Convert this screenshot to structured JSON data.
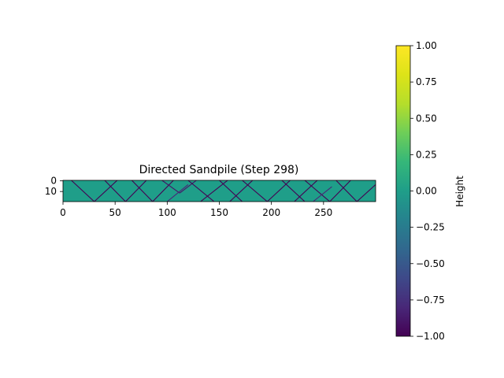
{
  "chart_data": {
    "type": "heatmap",
    "title": "Directed Sandpile (Step 298)",
    "xlabel": "",
    "ylabel": "",
    "grid_size": {
      "cols": 300,
      "rows": 20
    },
    "xlim": [
      0,
      300
    ],
    "ylim": [
      20,
      0
    ],
    "xticks": [
      0,
      50,
      100,
      150,
      200,
      250
    ],
    "yticks": [
      0,
      10
    ],
    "background_value": 0.0,
    "colormap": "viridis",
    "colorbar": {
      "label": "Height",
      "range": [
        -1.0,
        1.0
      ],
      "ticks": [
        "1.00",
        "0.75",
        "0.50",
        "0.25",
        "0.00",
        "−0.25",
        "−0.50",
        "−0.75",
        "−1.00"
      ]
    },
    "avalanche_lines": [
      {
        "x0": 8,
        "y0": 0,
        "x1": 30,
        "y1": 20,
        "value": -1.0
      },
      {
        "x0": 30,
        "y0": 20,
        "x1": 52,
        "y1": 0,
        "value": -1.0
      },
      {
        "x0": 40,
        "y0": 0,
        "x1": 60,
        "y1": 20,
        "value": -1.0
      },
      {
        "x0": 60,
        "y0": 20,
        "x1": 80,
        "y1": 0,
        "value": -1.0
      },
      {
        "x0": 66,
        "y0": 0,
        "x1": 86,
        "y1": 20,
        "value": -1.0
      },
      {
        "x0": 86,
        "y0": 20,
        "x1": 106,
        "y1": 0,
        "value": -1.0
      },
      {
        "x0": 95,
        "y0": 0,
        "x1": 112,
        "y1": 12,
        "value": -0.9
      },
      {
        "x0": 112,
        "y0": 12,
        "x1": 128,
        "y1": 0,
        "value": -0.9
      },
      {
        "x0": 120,
        "y0": 0,
        "x1": 145,
        "y1": 20,
        "value": -1.0
      },
      {
        "x0": 132,
        "y0": 20,
        "x1": 158,
        "y1": 0,
        "value": -1.0
      },
      {
        "x0": 150,
        "y0": 0,
        "x1": 172,
        "y1": 20,
        "value": -1.0
      },
      {
        "x0": 160,
        "y0": 20,
        "x1": 182,
        "y1": 0,
        "value": -1.0
      },
      {
        "x0": 172,
        "y0": 0,
        "x1": 196,
        "y1": 20,
        "value": -1.0
      },
      {
        "x0": 196,
        "y0": 20,
        "x1": 218,
        "y1": 0,
        "value": -1.0
      },
      {
        "x0": 210,
        "y0": 0,
        "x1": 232,
        "y1": 20,
        "value": -1.0
      },
      {
        "x0": 222,
        "y0": 20,
        "x1": 244,
        "y1": 0,
        "value": -1.0
      },
      {
        "x0": 232,
        "y0": 0,
        "x1": 256,
        "y1": 20,
        "value": -1.0
      },
      {
        "x0": 256,
        "y0": 20,
        "x1": 276,
        "y1": 0,
        "value": -1.0
      },
      {
        "x0": 262,
        "y0": 0,
        "x1": 282,
        "y1": 20,
        "value": -1.0
      },
      {
        "x0": 282,
        "y0": 20,
        "x1": 300,
        "y1": 4,
        "value": -1.0
      },
      {
        "x0": 100,
        "y0": 20,
        "x1": 120,
        "y1": 4,
        "value": -0.8
      },
      {
        "x0": 240,
        "y0": 20,
        "x1": 258,
        "y1": 6,
        "value": -0.8
      }
    ]
  }
}
